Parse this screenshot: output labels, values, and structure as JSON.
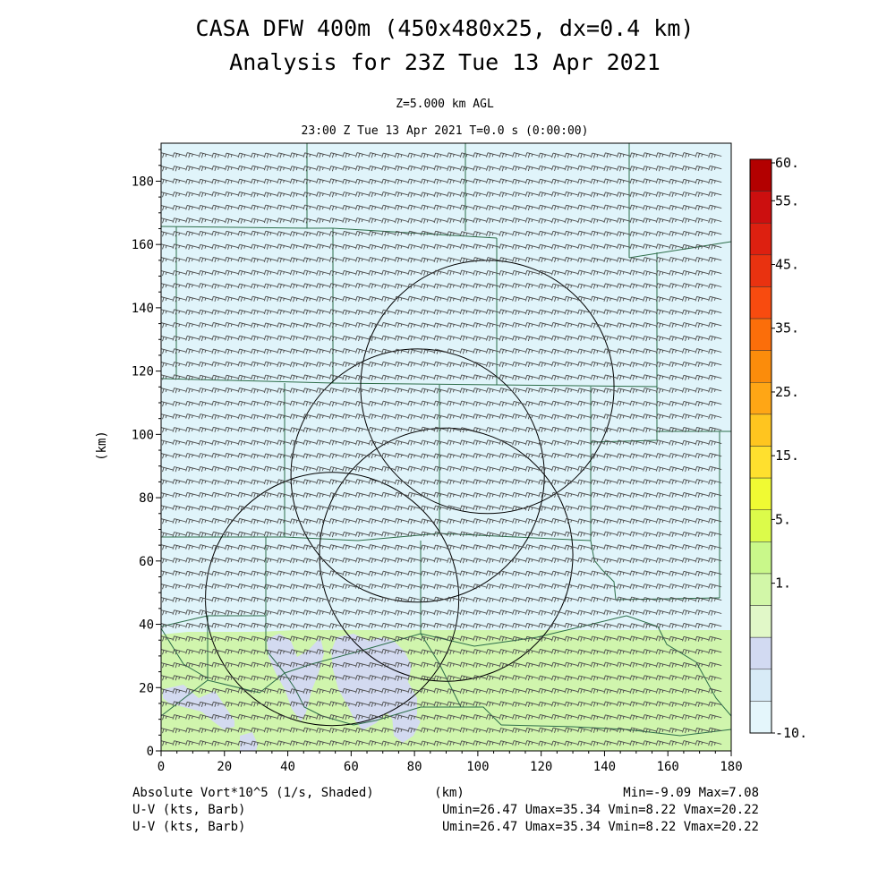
{
  "header": {
    "title_line1": "CASA DFW 400m (450x480x25, dx=0.4 km)",
    "title_line2": "Analysis for 23Z Tue 13 Apr 2021",
    "level": "Z=5.000 km AGL",
    "time": "23:00 Z Tue 13 Apr 2021   T=0.0 s (0:00:00)"
  },
  "footer": {
    "field1_label": "Absolute Vort*10^5 (1/s, Shaded)",
    "field1_stats": "Min=-9.09 Max=7.08",
    "field2_label": "U-V (kts, Barb)",
    "field2_stats": "Umin=26.47 Umax=35.34 Vmin=8.22 Vmax=20.22",
    "field3_label": "U-V (kts, Barb)",
    "field3_stats": "Umin=26.47 Umax=35.34 Vmin=8.22 Vmax=20.22"
  },
  "colors": {
    "background_field": "#e0f4fa",
    "vort_low_field": "#d3daf0",
    "vort_high_field": "#d0f5ad",
    "county_lines": "#2d6e4a",
    "radar_rings": "#000000",
    "barbs": "#4a4a4a"
  },
  "chart_data": {
    "type": "heatmap",
    "title": "CASA DFW 400m (450x480x25, dx=0.4 km)",
    "xlabel": "(km)",
    "ylabel": "(km)",
    "xlim": [
      0,
      180
    ],
    "ylim": [
      0,
      192
    ],
    "x_ticks": [
      "0",
      "20",
      "40",
      "60",
      "80",
      "100",
      "120",
      "140",
      "160",
      "180"
    ],
    "y_ticks": [
      "0",
      "20",
      "40",
      "60",
      "80",
      "100",
      "120",
      "140",
      "160",
      "180"
    ],
    "colorbar": {
      "labels": [
        "60.",
        "55.",
        "45.",
        "35.",
        "25.",
        "15.",
        "5.",
        "1.",
        "-10."
      ],
      "bins": [
        {
          "color": "#b30000"
        },
        {
          "color": "#cc0f0f"
        },
        {
          "color": "#dd2010"
        },
        {
          "color": "#e93210"
        },
        {
          "color": "#f84b0f"
        },
        {
          "color": "#fb6e0a"
        },
        {
          "color": "#fb8c0b"
        },
        {
          "color": "#ffa615"
        },
        {
          "color": "#ffc51f"
        },
        {
          "color": "#ffe02e"
        },
        {
          "color": "#f0fa33"
        },
        {
          "color": "#dcfb4a"
        },
        {
          "color": "#c9f88a"
        },
        {
          "color": "#d2f7a8"
        },
        {
          "color": "#e1f8c8"
        },
        {
          "color": "#d2daf2"
        },
        {
          "color": "#d8ebf7"
        },
        {
          "color": "#e4f6fb"
        }
      ]
    },
    "radar_rings_km": [
      {
        "cx": 103,
        "cy": 115,
        "r": 40
      },
      {
        "cx": 81,
        "cy": 87,
        "r": 40
      },
      {
        "cx": 54,
        "cy": 48,
        "r": 40
      },
      {
        "cx": 90,
        "cy": 62,
        "r": 40
      }
    ],
    "wind_barbs": {
      "u_range": [
        26.47,
        35.34
      ],
      "v_range": [
        8.22,
        20.22
      ]
    },
    "vorticity": {
      "min": -9.09,
      "max": 7.08
    }
  }
}
